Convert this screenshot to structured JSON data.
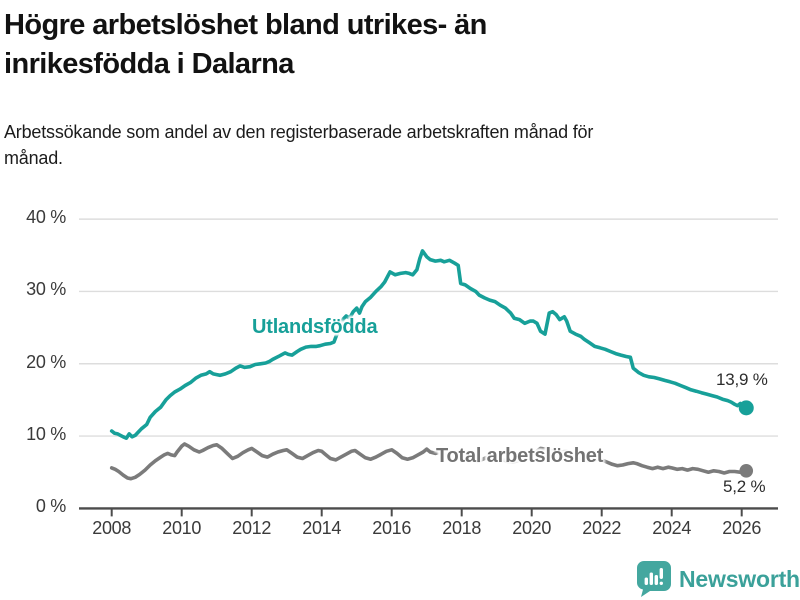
{
  "header": {
    "title": "Högre arbetslöshet bland utrikes- än inrikesfödda i Dalarna",
    "subtitle": "Arbetssökande som andel av den registerbaserade arbetskraften månad för månad."
  },
  "footer": {
    "brand": "Newsworthy",
    "logo_icon": "bar-chart-speech-bubble-icon"
  },
  "colors": {
    "accent_teal": "#17a099",
    "line_gray": "#7b7b7b",
    "label_gray": "#737373",
    "grid": "#dddddd",
    "axis": "#4c4c4c",
    "tick_text": "#3a3a3a",
    "title_text": "#121212",
    "logo_teal": "#44a79f"
  },
  "chart_data": {
    "type": "line",
    "title": "Högre arbetslöshet bland utrikes- än inrikesfödda i Dalarna",
    "subtitle": "Arbetssökande som andel av den registerbaserade arbetskraften månad för månad.",
    "xlabel": "",
    "ylabel": "",
    "grid": true,
    "legend_position": "inline-labels",
    "x_range": [
      2007.85,
      2027.1
    ],
    "ylim": [
      0,
      40
    ],
    "y_axis": {
      "ticks": [
        {
          "value": 0,
          "label": "0 %"
        },
        {
          "value": 10,
          "label": "10 %"
        },
        {
          "value": 20,
          "label": "20 %"
        },
        {
          "value": 30,
          "label": "30 %"
        },
        {
          "value": 40,
          "label": "40 %"
        }
      ]
    },
    "x_axis": {
      "ticks": [
        {
          "value": 2008,
          "label": "2008"
        },
        {
          "value": 2010,
          "label": "2010"
        },
        {
          "value": 2012,
          "label": "2012"
        },
        {
          "value": 2014,
          "label": "2014"
        },
        {
          "value": 2016,
          "label": "2016"
        },
        {
          "value": 2018,
          "label": "2018"
        },
        {
          "value": 2020,
          "label": "2020"
        },
        {
          "value": 2022,
          "label": "2022"
        },
        {
          "value": 2024,
          "label": "2024"
        },
        {
          "value": 2026,
          "label": "2026"
        }
      ]
    },
    "series": [
      {
        "name": "Utlandsfödda",
        "color": "#17a099",
        "end_label": "13,9 %",
        "end_value": 13.9,
        "points": [
          [
            2008.0,
            10.7
          ],
          [
            2008.08,
            10.4
          ],
          [
            2008.17,
            10.3
          ],
          [
            2008.25,
            10.1
          ],
          [
            2008.33,
            9.9
          ],
          [
            2008.42,
            9.7
          ],
          [
            2008.5,
            10.3
          ],
          [
            2008.58,
            9.9
          ],
          [
            2008.67,
            10.1
          ],
          [
            2008.75,
            10.5
          ],
          [
            2008.85,
            11.0
          ],
          [
            2009.0,
            11.6
          ],
          [
            2009.1,
            12.6
          ],
          [
            2009.25,
            13.4
          ],
          [
            2009.4,
            14.0
          ],
          [
            2009.55,
            15.0
          ],
          [
            2009.67,
            15.6
          ],
          [
            2009.8,
            16.1
          ],
          [
            2009.95,
            16.5
          ],
          [
            2010.1,
            17.0
          ],
          [
            2010.25,
            17.4
          ],
          [
            2010.4,
            18.0
          ],
          [
            2010.55,
            18.4
          ],
          [
            2010.7,
            18.6
          ],
          [
            2010.8,
            18.9
          ],
          [
            2010.9,
            18.6
          ],
          [
            2011.0,
            18.5
          ],
          [
            2011.1,
            18.4
          ],
          [
            2011.25,
            18.6
          ],
          [
            2011.4,
            18.9
          ],
          [
            2011.55,
            19.4
          ],
          [
            2011.67,
            19.7
          ],
          [
            2011.8,
            19.5
          ],
          [
            2011.95,
            19.6
          ],
          [
            2012.1,
            19.9
          ],
          [
            2012.25,
            20.0
          ],
          [
            2012.4,
            20.1
          ],
          [
            2012.5,
            20.3
          ],
          [
            2012.6,
            20.6
          ],
          [
            2012.8,
            21.1
          ],
          [
            2012.95,
            21.5
          ],
          [
            2013.05,
            21.3
          ],
          [
            2013.15,
            21.2
          ],
          [
            2013.3,
            21.7
          ],
          [
            2013.4,
            22.0
          ],
          [
            2013.55,
            22.3
          ],
          [
            2013.7,
            22.4
          ],
          [
            2013.85,
            22.4
          ],
          [
            2013.95,
            22.5
          ],
          [
            2014.1,
            22.7
          ],
          [
            2014.25,
            22.8
          ],
          [
            2014.35,
            23.0
          ],
          [
            2014.45,
            24.3
          ],
          [
            2014.55,
            25.6
          ],
          [
            2014.62,
            26.2
          ],
          [
            2014.7,
            26.6
          ],
          [
            2014.8,
            26.3
          ],
          [
            2014.9,
            27.2
          ],
          [
            2015.0,
            27.7
          ],
          [
            2015.08,
            27.0
          ],
          [
            2015.15,
            27.9
          ],
          [
            2015.25,
            28.6
          ],
          [
            2015.4,
            29.2
          ],
          [
            2015.55,
            30.0
          ],
          [
            2015.7,
            30.7
          ],
          [
            2015.8,
            31.3
          ],
          [
            2015.95,
            32.7
          ],
          [
            2016.1,
            32.3
          ],
          [
            2016.25,
            32.5
          ],
          [
            2016.4,
            32.6
          ],
          [
            2016.5,
            32.5
          ],
          [
            2016.6,
            32.3
          ],
          [
            2016.72,
            33.0
          ],
          [
            2016.8,
            34.5
          ],
          [
            2016.88,
            35.6
          ],
          [
            2017.0,
            34.8
          ],
          [
            2017.1,
            34.4
          ],
          [
            2017.25,
            34.2
          ],
          [
            2017.4,
            34.3
          ],
          [
            2017.5,
            34.1
          ],
          [
            2017.65,
            34.3
          ],
          [
            2017.8,
            33.9
          ],
          [
            2017.9,
            33.6
          ],
          [
            2017.97,
            31.1
          ],
          [
            2018.1,
            30.9
          ],
          [
            2018.25,
            30.4
          ],
          [
            2018.4,
            30.0
          ],
          [
            2018.5,
            29.5
          ],
          [
            2018.65,
            29.1
          ],
          [
            2018.8,
            28.8
          ],
          [
            2018.95,
            28.6
          ],
          [
            2019.1,
            28.1
          ],
          [
            2019.25,
            27.7
          ],
          [
            2019.4,
            27.0
          ],
          [
            2019.5,
            26.3
          ],
          [
            2019.65,
            26.1
          ],
          [
            2019.8,
            25.6
          ],
          [
            2019.95,
            25.9
          ],
          [
            2020.05,
            25.9
          ],
          [
            2020.15,
            25.6
          ],
          [
            2020.25,
            24.5
          ],
          [
            2020.38,
            24.1
          ],
          [
            2020.5,
            27.0
          ],
          [
            2020.6,
            27.2
          ],
          [
            2020.7,
            26.8
          ],
          [
            2020.8,
            26.1
          ],
          [
            2020.93,
            26.5
          ],
          [
            2021.0,
            25.9
          ],
          [
            2021.1,
            24.5
          ],
          [
            2021.25,
            24.1
          ],
          [
            2021.4,
            23.8
          ],
          [
            2021.5,
            23.4
          ],
          [
            2021.65,
            22.9
          ],
          [
            2021.8,
            22.4
          ],
          [
            2021.95,
            22.2
          ],
          [
            2022.1,
            22.0
          ],
          [
            2022.25,
            21.7
          ],
          [
            2022.4,
            21.4
          ],
          [
            2022.55,
            21.2
          ],
          [
            2022.7,
            21.0
          ],
          [
            2022.82,
            20.9
          ],
          [
            2022.9,
            19.4
          ],
          [
            2023.05,
            18.8
          ],
          [
            2023.2,
            18.4
          ],
          [
            2023.35,
            18.2
          ],
          [
            2023.5,
            18.1
          ],
          [
            2023.65,
            17.9
          ],
          [
            2023.8,
            17.7
          ],
          [
            2023.95,
            17.5
          ],
          [
            2024.1,
            17.3
          ],
          [
            2024.25,
            17.0
          ],
          [
            2024.4,
            16.7
          ],
          [
            2024.55,
            16.4
          ],
          [
            2024.7,
            16.2
          ],
          [
            2024.85,
            16.0
          ],
          [
            2025.0,
            15.8
          ],
          [
            2025.15,
            15.6
          ],
          [
            2025.3,
            15.4
          ],
          [
            2025.45,
            15.1
          ],
          [
            2025.6,
            14.9
          ],
          [
            2025.7,
            14.7
          ],
          [
            2025.8,
            14.4
          ],
          [
            2025.88,
            14.2
          ],
          [
            2025.96,
            14.5
          ],
          [
            2026.05,
            14.0
          ],
          [
            2026.13,
            13.9
          ]
        ]
      },
      {
        "name": "Total arbetslöshet",
        "color": "#7b7b7b",
        "end_label": "5,2 %",
        "end_value": 5.2,
        "points": [
          [
            2008.0,
            5.6
          ],
          [
            2008.1,
            5.4
          ],
          [
            2008.2,
            5.1
          ],
          [
            2008.33,
            4.6
          ],
          [
            2008.45,
            4.2
          ],
          [
            2008.55,
            4.1
          ],
          [
            2008.67,
            4.3
          ],
          [
            2008.8,
            4.7
          ],
          [
            2008.95,
            5.3
          ],
          [
            2009.1,
            6.0
          ],
          [
            2009.25,
            6.6
          ],
          [
            2009.4,
            7.1
          ],
          [
            2009.5,
            7.4
          ],
          [
            2009.6,
            7.6
          ],
          [
            2009.7,
            7.4
          ],
          [
            2009.8,
            7.3
          ],
          [
            2009.87,
            7.8
          ],
          [
            2010.0,
            8.6
          ],
          [
            2010.08,
            8.9
          ],
          [
            2010.2,
            8.6
          ],
          [
            2010.35,
            8.1
          ],
          [
            2010.5,
            7.8
          ],
          [
            2010.6,
            8.0
          ],
          [
            2010.75,
            8.4
          ],
          [
            2010.9,
            8.7
          ],
          [
            2011.0,
            8.8
          ],
          [
            2011.15,
            8.3
          ],
          [
            2011.3,
            7.6
          ],
          [
            2011.45,
            6.9
          ],
          [
            2011.6,
            7.2
          ],
          [
            2011.75,
            7.7
          ],
          [
            2011.9,
            8.1
          ],
          [
            2012.0,
            8.3
          ],
          [
            2012.15,
            7.8
          ],
          [
            2012.3,
            7.3
          ],
          [
            2012.45,
            7.1
          ],
          [
            2012.6,
            7.5
          ],
          [
            2012.75,
            7.8
          ],
          [
            2012.9,
            8.0
          ],
          [
            2013.0,
            8.1
          ],
          [
            2013.15,
            7.6
          ],
          [
            2013.3,
            7.1
          ],
          [
            2013.45,
            6.9
          ],
          [
            2013.6,
            7.3
          ],
          [
            2013.75,
            7.7
          ],
          [
            2013.9,
            8.0
          ],
          [
            2014.0,
            7.9
          ],
          [
            2014.1,
            7.5
          ],
          [
            2014.25,
            6.9
          ],
          [
            2014.4,
            6.7
          ],
          [
            2014.55,
            7.1
          ],
          [
            2014.7,
            7.5
          ],
          [
            2014.85,
            7.9
          ],
          [
            2014.95,
            8.0
          ],
          [
            2015.1,
            7.5
          ],
          [
            2015.25,
            7.0
          ],
          [
            2015.4,
            6.8
          ],
          [
            2015.55,
            7.1
          ],
          [
            2015.7,
            7.5
          ],
          [
            2015.85,
            7.9
          ],
          [
            2016.0,
            8.1
          ],
          [
            2016.15,
            7.6
          ],
          [
            2016.3,
            7.0
          ],
          [
            2016.45,
            6.8
          ],
          [
            2016.6,
            7.0
          ],
          [
            2016.75,
            7.4
          ],
          [
            2016.9,
            7.8
          ],
          [
            2017.0,
            8.2
          ],
          [
            2017.1,
            7.8
          ],
          [
            2017.25,
            7.6
          ],
          [
            2017.4,
            7.8
          ],
          [
            2017.55,
            7.4
          ],
          [
            2017.7,
            7.0
          ],
          [
            2017.85,
            7.3
          ],
          [
            2018.0,
            7.6
          ],
          [
            2018.15,
            7.2
          ],
          [
            2018.3,
            6.8
          ],
          [
            2018.45,
            6.5
          ],
          [
            2018.6,
            6.8
          ],
          [
            2018.75,
            7.1
          ],
          [
            2018.9,
            7.3
          ],
          [
            2019.0,
            7.2
          ],
          [
            2019.15,
            6.8
          ],
          [
            2019.3,
            6.5
          ],
          [
            2019.45,
            6.4
          ],
          [
            2019.6,
            6.6
          ],
          [
            2019.75,
            6.8
          ],
          [
            2019.9,
            7.0
          ],
          [
            2020.0,
            7.3
          ],
          [
            2020.12,
            7.8
          ],
          [
            2020.25,
            8.3
          ],
          [
            2020.4,
            8.2
          ],
          [
            2020.55,
            8.0
          ],
          [
            2020.7,
            7.7
          ],
          [
            2020.85,
            7.8
          ],
          [
            2021.0,
            7.9
          ],
          [
            2021.15,
            7.5
          ],
          [
            2021.3,
            7.1
          ],
          [
            2021.45,
            6.8
          ],
          [
            2021.6,
            6.6
          ],
          [
            2021.75,
            6.7
          ],
          [
            2021.9,
            6.8
          ],
          [
            2022.0,
            6.7
          ],
          [
            2022.15,
            6.4
          ],
          [
            2022.3,
            6.1
          ],
          [
            2022.45,
            5.9
          ],
          [
            2022.6,
            6.0
          ],
          [
            2022.75,
            6.2
          ],
          [
            2022.9,
            6.3
          ],
          [
            2023.0,
            6.2
          ],
          [
            2023.15,
            5.9
          ],
          [
            2023.3,
            5.7
          ],
          [
            2023.45,
            5.5
          ],
          [
            2023.6,
            5.7
          ],
          [
            2023.75,
            5.5
          ],
          [
            2023.9,
            5.7
          ],
          [
            2024.0,
            5.6
          ],
          [
            2024.15,
            5.4
          ],
          [
            2024.3,
            5.5
          ],
          [
            2024.45,
            5.3
          ],
          [
            2024.6,
            5.5
          ],
          [
            2024.75,
            5.4
          ],
          [
            2024.9,
            5.2
          ],
          [
            2025.05,
            5.0
          ],
          [
            2025.2,
            5.2
          ],
          [
            2025.35,
            5.1
          ],
          [
            2025.5,
            4.9
          ],
          [
            2025.65,
            5.1
          ],
          [
            2025.8,
            5.1
          ],
          [
            2025.95,
            5.0
          ],
          [
            2026.05,
            5.1
          ],
          [
            2026.13,
            5.2
          ]
        ]
      }
    ]
  }
}
